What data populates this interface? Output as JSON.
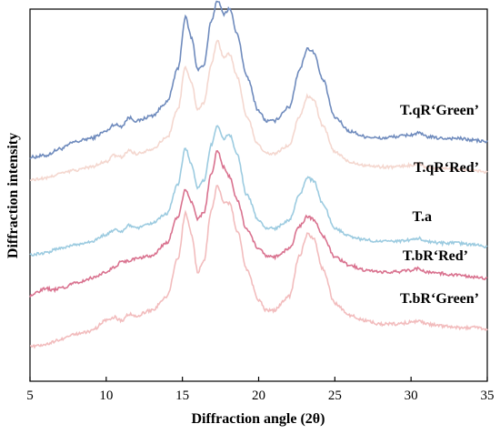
{
  "chart_data": {
    "type": "line",
    "xlabel": "Diffraction angle (2θ)",
    "ylabel": "Diffraction intensity",
    "xlim": [
      5,
      35
    ],
    "x_ticks": [
      5,
      10,
      15,
      20,
      25,
      30,
      35
    ],
    "y_ticks_labeled": false,
    "grid": false,
    "legend": "inline labels at right of each curve",
    "series": [
      {
        "name": "T.qR‘Green’",
        "color": "#6f8bbd",
        "points": [
          [
            5,
            0.09
          ],
          [
            6,
            0.1
          ],
          [
            7,
            0.14
          ],
          [
            8,
            0.18
          ],
          [
            9,
            0.2
          ],
          [
            10,
            0.24
          ],
          [
            10.5,
            0.28
          ],
          [
            11,
            0.27
          ],
          [
            11.5,
            0.32
          ],
          [
            12,
            0.3
          ],
          [
            13,
            0.33
          ],
          [
            14,
            0.41
          ],
          [
            14.7,
            0.6
          ],
          [
            15.2,
            0.9
          ],
          [
            15.6,
            0.78
          ],
          [
            16,
            0.6
          ],
          [
            16.4,
            0.62
          ],
          [
            16.9,
            0.88
          ],
          [
            17.3,
            1.0
          ],
          [
            17.7,
            0.92
          ],
          [
            18.1,
            0.95
          ],
          [
            18.6,
            0.8
          ],
          [
            19.2,
            0.56
          ],
          [
            20,
            0.36
          ],
          [
            20.5,
            0.3
          ],
          [
            21,
            0.3
          ],
          [
            22,
            0.38
          ],
          [
            22.7,
            0.6
          ],
          [
            23.2,
            0.72
          ],
          [
            23.6,
            0.7
          ],
          [
            24.2,
            0.54
          ],
          [
            25,
            0.32
          ],
          [
            26,
            0.24
          ],
          [
            27,
            0.21
          ],
          [
            28,
            0.2
          ],
          [
            29,
            0.21
          ],
          [
            30,
            0.22
          ],
          [
            30.5,
            0.23
          ],
          [
            31,
            0.21
          ],
          [
            32,
            0.2
          ],
          [
            33,
            0.2
          ],
          [
            34,
            0.19
          ],
          [
            35,
            0.18
          ]
        ]
      },
      {
        "name": "T.qR‘Red’",
        "color": "#f4d7cf",
        "points": [
          [
            5,
            0.09
          ],
          [
            6,
            0.1
          ],
          [
            7,
            0.13
          ],
          [
            8,
            0.15
          ],
          [
            9,
            0.17
          ],
          [
            10,
            0.2
          ],
          [
            10.5,
            0.24
          ],
          [
            11,
            0.23
          ],
          [
            11.5,
            0.27
          ],
          [
            12,
            0.25
          ],
          [
            13,
            0.28
          ],
          [
            14,
            0.35
          ],
          [
            14.7,
            0.52
          ],
          [
            15.2,
            0.78
          ],
          [
            15.6,
            0.68
          ],
          [
            16,
            0.52
          ],
          [
            16.4,
            0.56
          ],
          [
            16.9,
            0.8
          ],
          [
            17.3,
            0.94
          ],
          [
            17.7,
            0.84
          ],
          [
            18.1,
            0.86
          ],
          [
            18.6,
            0.72
          ],
          [
            19.2,
            0.48
          ],
          [
            20,
            0.3
          ],
          [
            20.5,
            0.25
          ],
          [
            21,
            0.25
          ],
          [
            22,
            0.3
          ],
          [
            22.7,
            0.48
          ],
          [
            23.2,
            0.6
          ],
          [
            23.6,
            0.58
          ],
          [
            24.2,
            0.42
          ],
          [
            25,
            0.26
          ],
          [
            26,
            0.2
          ],
          [
            27,
            0.18
          ],
          [
            28,
            0.17
          ],
          [
            29,
            0.17
          ],
          [
            30,
            0.18
          ],
          [
            30.5,
            0.19
          ],
          [
            31,
            0.17
          ],
          [
            32,
            0.16
          ],
          [
            33,
            0.16
          ],
          [
            34,
            0.15
          ],
          [
            35,
            0.14
          ]
        ]
      },
      {
        "name": "T.a",
        "color": "#9ccbe0",
        "points": [
          [
            5,
            0.09
          ],
          [
            6,
            0.1
          ],
          [
            7,
            0.13
          ],
          [
            8,
            0.15
          ],
          [
            9,
            0.17
          ],
          [
            10,
            0.21
          ],
          [
            10.5,
            0.24
          ],
          [
            11,
            0.23
          ],
          [
            11.5,
            0.27
          ],
          [
            12,
            0.25
          ],
          [
            13,
            0.28
          ],
          [
            14,
            0.34
          ],
          [
            14.7,
            0.52
          ],
          [
            15.2,
            0.74
          ],
          [
            15.6,
            0.64
          ],
          [
            16,
            0.5
          ],
          [
            16.4,
            0.54
          ],
          [
            16.9,
            0.76
          ],
          [
            17.3,
            0.88
          ],
          [
            17.7,
            0.8
          ],
          [
            18.1,
            0.82
          ],
          [
            18.6,
            0.7
          ],
          [
            19.2,
            0.46
          ],
          [
            20,
            0.3
          ],
          [
            20.5,
            0.25
          ],
          [
            21,
            0.25
          ],
          [
            22,
            0.3
          ],
          [
            22.7,
            0.46
          ],
          [
            23.2,
            0.56
          ],
          [
            23.6,
            0.54
          ],
          [
            24.2,
            0.4
          ],
          [
            25,
            0.25
          ],
          [
            26,
            0.2
          ],
          [
            27,
            0.18
          ],
          [
            28,
            0.17
          ],
          [
            29,
            0.17
          ],
          [
            30,
            0.18
          ],
          [
            30.5,
            0.19
          ],
          [
            31,
            0.17
          ],
          [
            32,
            0.16
          ],
          [
            33,
            0.16
          ],
          [
            34,
            0.15
          ],
          [
            35,
            0.14
          ]
        ]
      },
      {
        "name": "T.bR‘Red’",
        "color": "#d9728f",
        "points": [
          [
            5,
            0.09
          ],
          [
            5.5,
            0.12
          ],
          [
            6,
            0.14
          ],
          [
            6.5,
            0.13
          ],
          [
            7,
            0.14
          ],
          [
            8,
            0.17
          ],
          [
            9,
            0.2
          ],
          [
            10,
            0.24
          ],
          [
            10.5,
            0.27
          ],
          [
            11,
            0.3
          ],
          [
            11.5,
            0.31
          ],
          [
            12,
            0.32
          ],
          [
            13,
            0.34
          ],
          [
            14,
            0.42
          ],
          [
            14.7,
            0.58
          ],
          [
            15.2,
            0.74
          ],
          [
            15.6,
            0.66
          ],
          [
            16,
            0.56
          ],
          [
            16.4,
            0.6
          ],
          [
            16.9,
            0.84
          ],
          [
            17.3,
            0.98
          ],
          [
            17.7,
            0.88
          ],
          [
            18.1,
            0.82
          ],
          [
            18.6,
            0.68
          ],
          [
            19.2,
            0.5
          ],
          [
            20,
            0.38
          ],
          [
            20.5,
            0.34
          ],
          [
            21,
            0.33
          ],
          [
            22,
            0.38
          ],
          [
            22.7,
            0.52
          ],
          [
            23.2,
            0.58
          ],
          [
            23.6,
            0.56
          ],
          [
            24.2,
            0.46
          ],
          [
            25,
            0.33
          ],
          [
            26,
            0.28
          ],
          [
            27,
            0.25
          ],
          [
            28,
            0.24
          ],
          [
            29,
            0.24
          ],
          [
            30,
            0.25
          ],
          [
            30.5,
            0.26
          ],
          [
            31,
            0.24
          ],
          [
            32,
            0.23
          ],
          [
            33,
            0.22
          ],
          [
            34,
            0.21
          ],
          [
            35,
            0.2
          ]
        ]
      },
      {
        "name": "T.bR‘Green’",
        "color": "#f2bcbd",
        "points": [
          [
            5,
            0.09
          ],
          [
            6,
            0.1
          ],
          [
            7,
            0.13
          ],
          [
            8,
            0.16
          ],
          [
            9,
            0.18
          ],
          [
            10,
            0.24
          ],
          [
            10.5,
            0.26
          ],
          [
            11,
            0.24
          ],
          [
            11.5,
            0.28
          ],
          [
            12,
            0.27
          ],
          [
            13,
            0.3
          ],
          [
            14,
            0.38
          ],
          [
            14.7,
            0.6
          ],
          [
            15.2,
            0.86
          ],
          [
            15.6,
            0.74
          ],
          [
            16,
            0.52
          ],
          [
            16.4,
            0.58
          ],
          [
            16.9,
            0.88
          ],
          [
            17.3,
            1.02
          ],
          [
            17.7,
            0.92
          ],
          [
            18.1,
            0.92
          ],
          [
            18.6,
            0.76
          ],
          [
            19.2,
            0.54
          ],
          [
            20,
            0.36
          ],
          [
            20.5,
            0.3
          ],
          [
            21,
            0.3
          ],
          [
            22,
            0.38
          ],
          [
            22.7,
            0.62
          ],
          [
            23.2,
            0.74
          ],
          [
            23.6,
            0.72
          ],
          [
            24.2,
            0.54
          ],
          [
            25,
            0.34
          ],
          [
            26,
            0.27
          ],
          [
            27,
            0.24
          ],
          [
            28,
            0.22
          ],
          [
            29,
            0.22
          ],
          [
            30,
            0.23
          ],
          [
            30.5,
            0.24
          ],
          [
            31,
            0.22
          ],
          [
            32,
            0.21
          ],
          [
            33,
            0.2
          ],
          [
            34,
            0.2
          ],
          [
            35,
            0.19
          ]
        ]
      }
    ]
  }
}
